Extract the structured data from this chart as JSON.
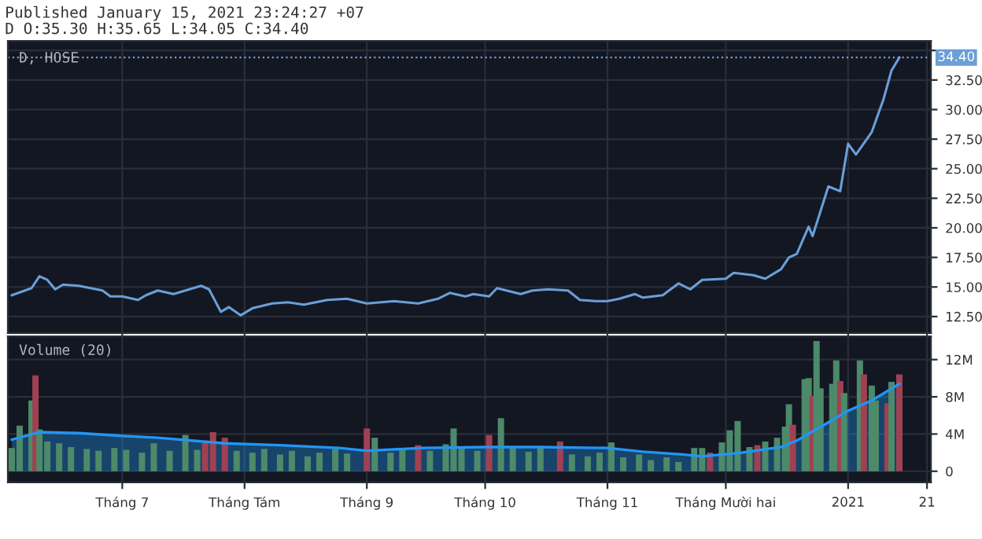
{
  "chart_data": [
    {
      "type": "line",
      "title": "Published January 15, 2021 23:24:27 +07",
      "subtitle": "D O:35.30 H:35.65 L:34.05 C:34.40",
      "annotations": [
        "D, HOSE"
      ],
      "series": [
        {
          "color": "#6a9fd8",
          "x": [
            "2020-06-03",
            "2020-06-08",
            "2020-06-10",
            "2020-06-12",
            "2020-06-14",
            "2020-06-16",
            "2020-06-20",
            "2020-06-26",
            "2020-06-28",
            "2020-07-01",
            "2020-07-05",
            "2020-07-07",
            "2020-07-10",
            "2020-07-14",
            "2020-07-21",
            "2020-07-23",
            "2020-07-26",
            "2020-07-28",
            "2020-07-31",
            "2020-08-03",
            "2020-08-08",
            "2020-08-12",
            "2020-08-16",
            "2020-08-22",
            "2020-08-27",
            "2020-09-01",
            "2020-09-08",
            "2020-09-14",
            "2020-09-19",
            "2020-09-22",
            "2020-09-26",
            "2020-09-28",
            "2020-10-02",
            "2020-10-04",
            "2020-10-10",
            "2020-10-13",
            "2020-10-17",
            "2020-10-22",
            "2020-10-25",
            "2020-10-29",
            "2020-11-01",
            "2020-11-04",
            "2020-11-08",
            "2020-11-10",
            "2020-11-15",
            "2020-11-19",
            "2020-11-22",
            "2020-11-25",
            "2020-12-01",
            "2020-12-03",
            "2020-12-08",
            "2020-12-11",
            "2020-12-15",
            "2020-12-17",
            "2020-12-19",
            "2020-12-22",
            "2020-12-23",
            "2020-12-27",
            "2020-12-30",
            "2021-01-01",
            "2021-01-03",
            "2021-01-07",
            "2021-01-10",
            "2021-01-12",
            "2021-01-14"
          ],
          "values": [
            14.3,
            14.9,
            15.9,
            15.6,
            14.8,
            15.2,
            15.1,
            14.7,
            14.2,
            14.2,
            13.9,
            14.3,
            14.7,
            14.4,
            15.1,
            14.8,
            12.9,
            13.3,
            12.6,
            13.2,
            13.6,
            13.7,
            13.5,
            13.9,
            14.0,
            13.6,
            13.8,
            13.6,
            14.0,
            14.5,
            14.2,
            14.4,
            14.2,
            14.9,
            14.4,
            14.7,
            14.8,
            14.7,
            13.9,
            13.8,
            13.8,
            14.0,
            14.4,
            14.1,
            14.3,
            15.3,
            14.8,
            15.6,
            15.7,
            16.2,
            16.0,
            15.7,
            16.5,
            17.5,
            17.8,
            20.1,
            19.3,
            23.5,
            23.1,
            27.1,
            26.2,
            28.1,
            30.9,
            33.3,
            34.4
          ]
        }
      ],
      "xlim": [
        "2020-06-02",
        "2021-01-22"
      ],
      "xticks": [
        {
          "value": "2020-07-01",
          "label": null
        },
        {
          "value": "2020-08-01",
          "label": null
        },
        {
          "value": "2020-09-01",
          "label": null
        },
        {
          "value": "2020-10-01",
          "label": null
        },
        {
          "value": "2020-11-01",
          "label": null
        },
        {
          "value": "2020-12-01",
          "label": null
        },
        {
          "value": "2021-01-01",
          "label": null
        },
        {
          "value": "2021-01-21",
          "label": null
        }
      ],
      "ylim": [
        11.1,
        35.8
      ],
      "yticks": [
        {
          "value": 12.5,
          "label": "12.50"
        },
        {
          "value": 15,
          "label": "15.00"
        },
        {
          "value": 17.5,
          "label": "17.50"
        },
        {
          "value": 20,
          "label": "20.00"
        },
        {
          "value": 22.5,
          "label": "22.50"
        },
        {
          "value": 25,
          "label": "25.00"
        },
        {
          "value": 27.5,
          "label": "27.50"
        },
        {
          "value": 30,
          "label": "30.00"
        },
        {
          "value": 32.5,
          "label": "32.50"
        },
        {
          "value": 35,
          "label": null
        }
      ],
      "ref_lines": [
        {
          "axis": "y",
          "value": 34.4,
          "label": "34.40",
          "color": "#6a9fd8",
          "line_style": "dotted"
        }
      ],
      "grid": true,
      "tick_labels": "y"
    },
    {
      "type": "bar",
      "title": "Volume (20)",
      "series": [
        {
          "type": "bar",
          "x": [
            "2020-06-03",
            "2020-06-05",
            "2020-06-08",
            "2020-06-09",
            "2020-06-10",
            "2020-06-12",
            "2020-06-15",
            "2020-06-18",
            "2020-06-22",
            "2020-06-25",
            "2020-06-29",
            "2020-07-02",
            "2020-07-06",
            "2020-07-09",
            "2020-07-13",
            "2020-07-17",
            "2020-07-20",
            "2020-07-22",
            "2020-07-24",
            "2020-07-27",
            "2020-07-30",
            "2020-08-03",
            "2020-08-06",
            "2020-08-10",
            "2020-08-13",
            "2020-08-17",
            "2020-08-20",
            "2020-08-24",
            "2020-08-27",
            "2020-09-01",
            "2020-09-03",
            "2020-09-07",
            "2020-09-10",
            "2020-09-14",
            "2020-09-17",
            "2020-09-21",
            "2020-09-23",
            "2020-09-25",
            "2020-09-29",
            "2020-10-02",
            "2020-10-05",
            "2020-10-08",
            "2020-10-12",
            "2020-10-15",
            "2020-10-20",
            "2020-10-23",
            "2020-10-27",
            "2020-10-30",
            "2020-11-02",
            "2020-11-05",
            "2020-11-09",
            "2020-11-12",
            "2020-11-16",
            "2020-11-19",
            "2020-11-23",
            "2020-11-25",
            "2020-11-27",
            "2020-11-30",
            "2020-12-02",
            "2020-12-04",
            "2020-12-07",
            "2020-12-09",
            "2020-12-11",
            "2020-12-14",
            "2020-12-16",
            "2020-12-17",
            "2020-12-18",
            "2020-12-21",
            "2020-12-22",
            "2020-12-23",
            "2020-12-24",
            "2020-12-25",
            "2020-12-28",
            "2020-12-29",
            "2020-12-30",
            "2020-12-31",
            "2021-01-04",
            "2021-01-05",
            "2021-01-07",
            "2021-01-08",
            "2021-01-11",
            "2021-01-12",
            "2021-01-14"
          ],
          "values": [
            2.5,
            4.9,
            7.6,
            10.3,
            4.5,
            3.2,
            3.0,
            2.6,
            2.4,
            2.2,
            2.5,
            2.3,
            2.0,
            3.0,
            2.2,
            3.9,
            2.3,
            3.3,
            4.2,
            3.6,
            2.2,
            2.0,
            2.4,
            1.8,
            2.2,
            1.6,
            2.0,
            2.4,
            1.9,
            4.6,
            3.6,
            2.0,
            2.4,
            2.8,
            2.2,
            2.9,
            4.6,
            2.5,
            2.2,
            3.9,
            5.7,
            2.6,
            2.1,
            2.6,
            3.2,
            1.8,
            1.6,
            2.0,
            3.1,
            1.5,
            1.8,
            1.2,
            1.5,
            1.0,
            2.5,
            2.5,
            2.0,
            3.1,
            4.4,
            5.4,
            2.6,
            2.8,
            3.2,
            3.6,
            4.8,
            7.2,
            5.0,
            9.9,
            10.0,
            8.1,
            14.0,
            8.9,
            9.4,
            11.9,
            9.7,
            8.4,
            11.9,
            10.4,
            9.2,
            7.6,
            7.3,
            9.6,
            10.4
          ],
          "colors": [
            "#4c8a6a",
            "#4c8a6a",
            "#4c8a6a",
            "#a04152",
            "#4c8a6a",
            "#4c8a6a",
            "#4c8a6a",
            "#4c8a6a",
            "#4c8a6a",
            "#4c8a6a",
            "#4c8a6a",
            "#4c8a6a",
            "#4c8a6a",
            "#4c8a6a",
            "#4c8a6a",
            "#4c8a6a",
            "#4c8a6a",
            "#a04152",
            "#a04152",
            "#a04152",
            "#4c8a6a",
            "#4c8a6a",
            "#4c8a6a",
            "#4c8a6a",
            "#4c8a6a",
            "#4c8a6a",
            "#4c8a6a",
            "#4c8a6a",
            "#4c8a6a",
            "#a04152",
            "#4c8a6a",
            "#4c8a6a",
            "#4c8a6a",
            "#a04152",
            "#4c8a6a",
            "#4c8a6a",
            "#4c8a6a",
            "#4c8a6a",
            "#4c8a6a",
            "#a04152",
            "#4c8a6a",
            "#4c8a6a",
            "#4c8a6a",
            "#4c8a6a",
            "#a04152",
            "#4c8a6a",
            "#4c8a6a",
            "#4c8a6a",
            "#4c8a6a",
            "#4c8a6a",
            "#4c8a6a",
            "#4c8a6a",
            "#4c8a6a",
            "#4c8a6a",
            "#4c8a6a",
            "#4c8a6a",
            "#a04152",
            "#4c8a6a",
            "#4c8a6a",
            "#4c8a6a",
            "#4c8a6a",
            "#a04152",
            "#4c8a6a",
            "#4c8a6a",
            "#4c8a6a",
            "#4c8a6a",
            "#a04152",
            "#4c8a6a",
            "#4c8a6a",
            "#a04152",
            "#4c8a6a",
            "#4c8a6a",
            "#4c8a6a",
            "#4c8a6a",
            "#a04152",
            "#4c8a6a",
            "#4c8a6a",
            "#a04152",
            "#4c8a6a",
            "#4c8a6a",
            "#a04152",
            "#4c8a6a",
            "#a04152"
          ]
        },
        {
          "type": "area",
          "color": "#2196f3",
          "x": [
            "2020-06-03",
            "2020-06-10",
            "2020-06-20",
            "2020-07-01",
            "2020-07-10",
            "2020-07-27",
            "2020-08-10",
            "2020-08-25",
            "2020-09-01",
            "2020-09-15",
            "2020-10-01",
            "2020-10-15",
            "2020-11-01",
            "2020-11-10",
            "2020-11-20",
            "2020-11-25",
            "2020-12-05",
            "2020-12-15",
            "2020-12-19",
            "2020-12-26",
            "2021-01-01",
            "2021-01-07",
            "2021-01-14"
          ],
          "values": [
            3.4,
            4.2,
            4.1,
            3.8,
            3.6,
            3.0,
            2.8,
            2.5,
            2.2,
            2.5,
            2.6,
            2.6,
            2.5,
            2.1,
            1.8,
            1.6,
            2.0,
            2.6,
            3.3,
            5.0,
            6.5,
            7.6,
            9.4
          ]
        }
      ],
      "xlim": [
        "2020-06-02",
        "2021-01-22"
      ],
      "xticks": [
        {
          "value": "2020-07-01",
          "label": "Tháng 7"
        },
        {
          "value": "2020-08-01",
          "label": "Tháng Tám"
        },
        {
          "value": "2020-09-01",
          "label": "Tháng 9"
        },
        {
          "value": "2020-10-01",
          "label": "Tháng 10"
        },
        {
          "value": "2020-11-01",
          "label": "Tháng 11"
        },
        {
          "value": "2020-12-01",
          "label": "Tháng Mười hai"
        },
        {
          "value": "2021-01-01",
          "label": "2021"
        },
        {
          "value": "2021-01-21",
          "label": "21"
        }
      ],
      "ylim": [
        -1.2,
        14.5
      ],
      "yticks": [
        0,
        {
          "value": 4,
          "label": "4M"
        },
        {
          "value": 8,
          "label": "8M"
        },
        {
          "value": 12,
          "label": "12M"
        }
      ],
      "grid": true
    }
  ]
}
